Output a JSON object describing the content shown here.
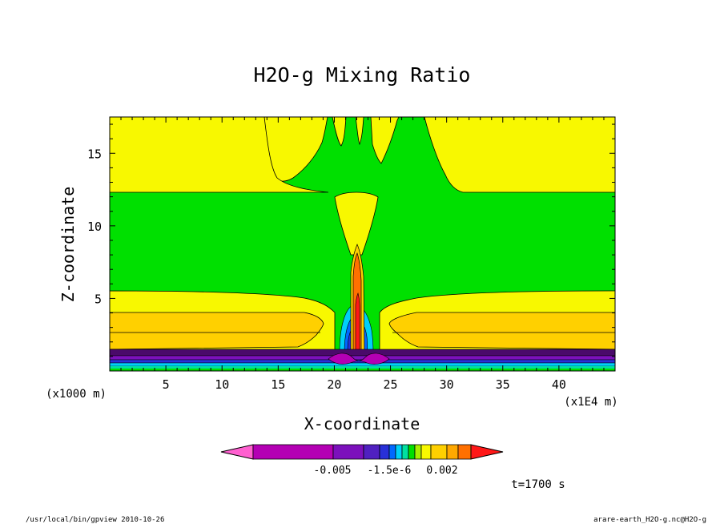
{
  "chart_data": {
    "type": "heatmap",
    "title": "H2O-g Mixing Ratio",
    "xlabel": "X-coordinate",
    "ylabel": "Z-coordinate",
    "x_units": "(x1E4 m)",
    "y_units": "(x1000 m)",
    "xlim": [
      0,
      45
    ],
    "ylim": [
      0,
      17.5
    ],
    "x_ticks": [
      {
        "value": 5,
        "label": "5"
      },
      {
        "value": 10,
        "label": "10"
      },
      {
        "value": 15,
        "label": "15"
      },
      {
        "value": 20,
        "label": "20"
      },
      {
        "value": 25,
        "label": "25"
      },
      {
        "value": 30,
        "label": "30"
      },
      {
        "value": 35,
        "label": "35"
      },
      {
        "value": 40,
        "label": "40"
      }
    ],
    "y_ticks": [
      {
        "value": 5,
        "label": "5"
      },
      {
        "value": 10,
        "label": "10"
      },
      {
        "value": 15,
        "label": "15"
      }
    ],
    "colorbar": {
      "tick_labels": [
        "-0.005",
        "-1.5e-6",
        "0.002"
      ],
      "colors": [
        "#ff60d0",
        "#b400b4",
        "#7c10bc",
        "#5020c0",
        "#2830d8",
        "#0068ff",
        "#00d0f8",
        "#00e0a0",
        "#00e000",
        "#a8f000",
        "#f8f800",
        "#ffd000",
        "#ffa800",
        "#ff7000",
        "#ff1818"
      ]
    },
    "colors": {
      "background_band": "#00e000",
      "upper_band": "#f8f800",
      "mid_band": "#f8f800",
      "gold_band": "#ffd000",
      "surface_dark": "#4a0a6a",
      "plume_orange": "#ff7000"
    },
    "annotation": "t=1700 s"
  },
  "footer": {
    "left": "/usr/local/bin/gpview  2010-10-26",
    "right": "arare-earth_H2O-g.nc@H2O-g"
  }
}
